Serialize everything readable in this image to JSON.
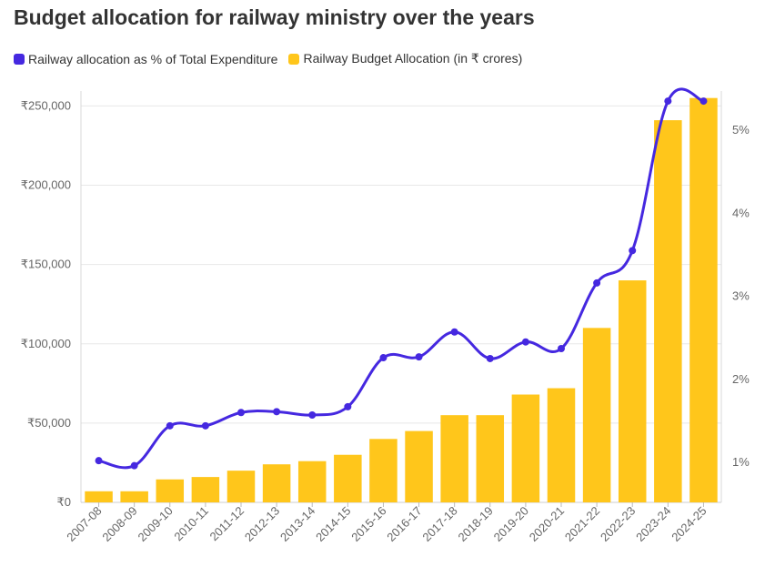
{
  "chart_data": {
    "type": "bar",
    "title": "Budget allocation for railway ministry over the years",
    "categories": [
      "2007-08",
      "2008-09",
      "2009-10",
      "2010-11",
      "2011-12",
      "2012-13",
      "2013-14",
      "2014-15",
      "2015-16",
      "2016-17",
      "2017-18",
      "2018-19",
      "2019-20",
      "2020-21",
      "2021-22",
      "2022-23",
      "2023-24",
      "2024-25"
    ],
    "series": [
      {
        "name": "Railway Budget Allocation (in ₹ crores)",
        "kind": "bar",
        "axis": "left",
        "color": "#FFC61B",
        "values": [
          7000,
          7000,
          14500,
          16000,
          20000,
          24000,
          26000,
          30000,
          40000,
          45000,
          55000,
          55000,
          68000,
          72000,
          110000,
          140000,
          241000,
          255000
        ]
      },
      {
        "name": "Railway allocation as % of Total Expenditure",
        "kind": "line",
        "axis": "right",
        "color": "#4528E0",
        "values": [
          1.02,
          0.96,
          1.44,
          1.44,
          1.6,
          1.61,
          1.57,
          1.67,
          2.26,
          2.27,
          2.57,
          2.25,
          2.45,
          2.37,
          3.16,
          3.55,
          5.35,
          5.35
        ]
      }
    ],
    "yAxisLeft": {
      "ylim": [
        0,
        255000
      ],
      "ticks": [
        0,
        50000,
        100000,
        150000,
        200000,
        250000
      ],
      "tickLabels": [
        "₹0",
        "₹50,000",
        "₹100,000",
        "₹150,000",
        "₹200,000",
        "₹250,000"
      ]
    },
    "yAxisRight": {
      "ylim": [
        0.5,
        5.5
      ],
      "ticks": [
        1,
        2,
        3,
        4,
        5
      ],
      "tickLabels": [
        "1%",
        "2%",
        "3%",
        "4%",
        "5%"
      ]
    },
    "grid": true,
    "legend": "top-left"
  }
}
